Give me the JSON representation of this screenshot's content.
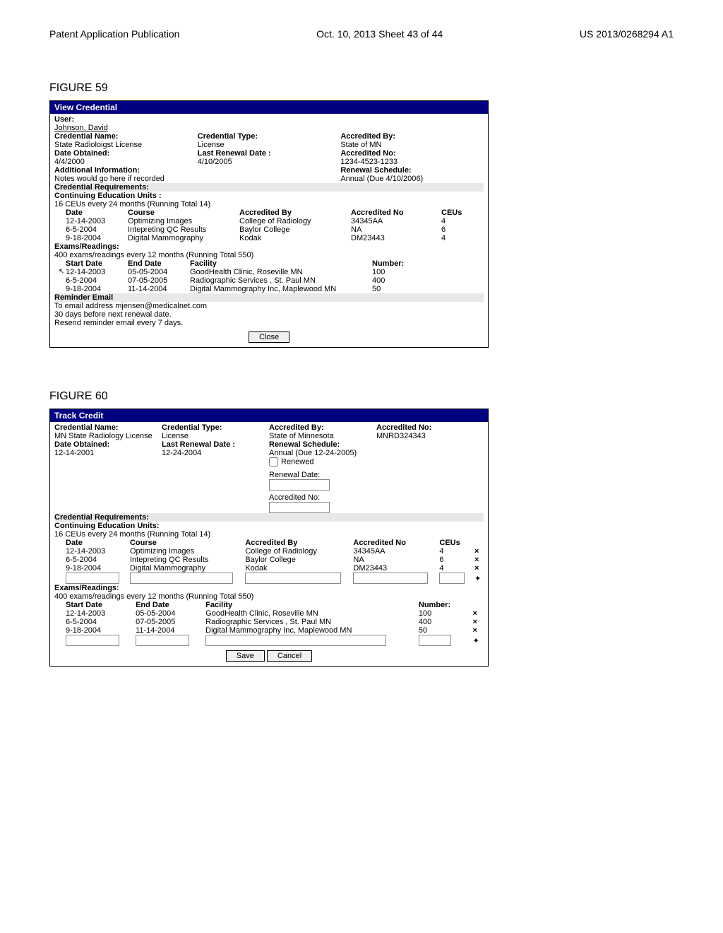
{
  "header": {
    "left": "Patent Application Publication",
    "center": "Oct. 10, 2013  Sheet 43 of 44",
    "right": "US 2013/0268294 A1"
  },
  "figure59": {
    "label": "FIGURE 59",
    "title": "View Credential",
    "user_label": "User:",
    "user_value": "Johnson, David",
    "cred_name_label": "Credential Name:",
    "cred_name_value": "State Radioloigst License",
    "date_obtained_label": "Date Obtained:",
    "date_obtained_value": "4/4/2000",
    "add_info_label": "Additional Information:",
    "add_info_value": "Notes would go here if recorded",
    "cred_type_label": "Credential Type:",
    "cred_type_value": "License",
    "last_renewal_label": "Last Renewal Date :",
    "last_renewal_value": "4/10/2005",
    "accredited_by_label": "Accredited By:",
    "accredited_by_value": "State of MN",
    "accredited_no_label": "Accredited No:",
    "accredited_no_value": "1234-4523-1233",
    "renewal_sched_label": "Renewal Schedule:",
    "renewal_sched_value": "Annual (Due 4/10/2006)",
    "cred_req_label": "Credential Requirements:",
    "ceu_label": "Continuing Education Units :",
    "ceu_note": "16 CEUs every 24 months (Running Total 14)",
    "ceu_headers": {
      "date": "Date",
      "course": "Course",
      "accby": "Accredited By",
      "accno": "Accredited No",
      "ceus": "CEUs"
    },
    "ceu_rows": [
      {
        "date": "12-14-2003",
        "course": "Optimizing Images",
        "accby": "College of Radiology",
        "accno": "34345AA",
        "ceus": "4"
      },
      {
        "date": "6-5-2004",
        "course": "Intepreting QC Results",
        "accby": "Baylor College",
        "accno": "NA",
        "ceus": "6"
      },
      {
        "date": "9-18-2004",
        "course": "Digital Mammography",
        "accby": "Kodak",
        "accno": "DM23443",
        "ceus": "4"
      }
    ],
    "exams_label": "Exams/Readings:",
    "exams_note": "400 exams/readings every 12 months (Running Total 550)",
    "exams_headers": {
      "start": "Start Date",
      "end": "End Date",
      "fac": "Facility",
      "num": "Number:"
    },
    "exams_rows": [
      {
        "start": "12-14-2003",
        "end": "05-05-2004",
        "fac": "GoodHealth Clinic, Roseville MN",
        "num": "100"
      },
      {
        "start": "6-5-2004",
        "end": "07-05-2005",
        "fac": "Radiographic Services , St. Paul MN",
        "num": "400"
      },
      {
        "start": "9-18-2004",
        "end": "11-14-2004",
        "fac": "Digital Mammography Inc, Maplewood MN",
        "num": "50"
      }
    ],
    "reminder_label": "Reminder Email",
    "reminder_line1": "To email address mjensen@medicalnet.com",
    "reminder_line2": "30 days before next renewal date.",
    "reminder_line3": "Resend reminder email every 7 days.",
    "close_btn": "Close"
  },
  "figure60": {
    "label": "FIGURE 60",
    "title": "Track Credit",
    "cred_name_label": "Credential Name:",
    "cred_name_value": "MN State Radiology License",
    "date_obtained_label": "Date Obtained:",
    "date_obtained_value": "12-14-2001",
    "cred_type_label": "Credential Type:",
    "cred_type_value": "License",
    "last_renewal_label": "Last Renewal Date :",
    "last_renewal_value": "12-24-2004",
    "accredited_by_label": "Accredited By:",
    "accredited_by_value": "State of Minnesota",
    "renewal_sched_label": "Renewal Schedule:",
    "renewal_sched_value": "Annual (Due 12-24-2005)",
    "accredited_no_label": "Accredited No:",
    "accredited_no_value": "MNRD324343",
    "renewed_label": "Renewed",
    "renewal_date_label": "Renewal Date:",
    "accredited_no2_label": "Accredited No:",
    "cred_req_label": "Credential Requirements:",
    "ceu_label": "Continuing Education Units:",
    "ceu_note": "16 CEUs every 24 months (Running Total 14)",
    "ceu_headers": {
      "date": "Date",
      "course": "Course",
      "accby": "Accredited By",
      "accno": "Accredited No",
      "ceus": "CEUs"
    },
    "ceu_rows": [
      {
        "date": "12-14-2003",
        "course": "Optimizing Images",
        "accby": "College of Radiology",
        "accno": "34345AA",
        "ceus": "4"
      },
      {
        "date": "6-5-2004",
        "course": "Intepreting QC Results",
        "accby": "Baylor College",
        "accno": "NA",
        "ceus": "6"
      },
      {
        "date": "9-18-2004",
        "course": "Digital Mammography",
        "accby": "Kodak",
        "accno": "DM23443",
        "ceus": "4"
      }
    ],
    "exams_label": "Exams/Readings:",
    "exams_note": "400 exams/readings every 12 months (Running Total 550)",
    "exams_headers": {
      "start": "Start Date",
      "end": "End Date",
      "fac": "Facility",
      "num": "Number:"
    },
    "exams_rows": [
      {
        "start": "12-14-2003",
        "end": "05-05-2004",
        "fac": "GoodHealth Clinic, Roseville MN",
        "num": "100"
      },
      {
        "start": "6-5-2004",
        "end": "07-05-2005",
        "fac": "Radiographic Services , St. Paul MN",
        "num": "400"
      },
      {
        "start": "9-18-2004",
        "end": "11-14-2004",
        "fac": "Digital Mammography Inc, Maplewood MN",
        "num": "50"
      }
    ],
    "save_btn": "Save",
    "cancel_btn": "Cancel"
  }
}
